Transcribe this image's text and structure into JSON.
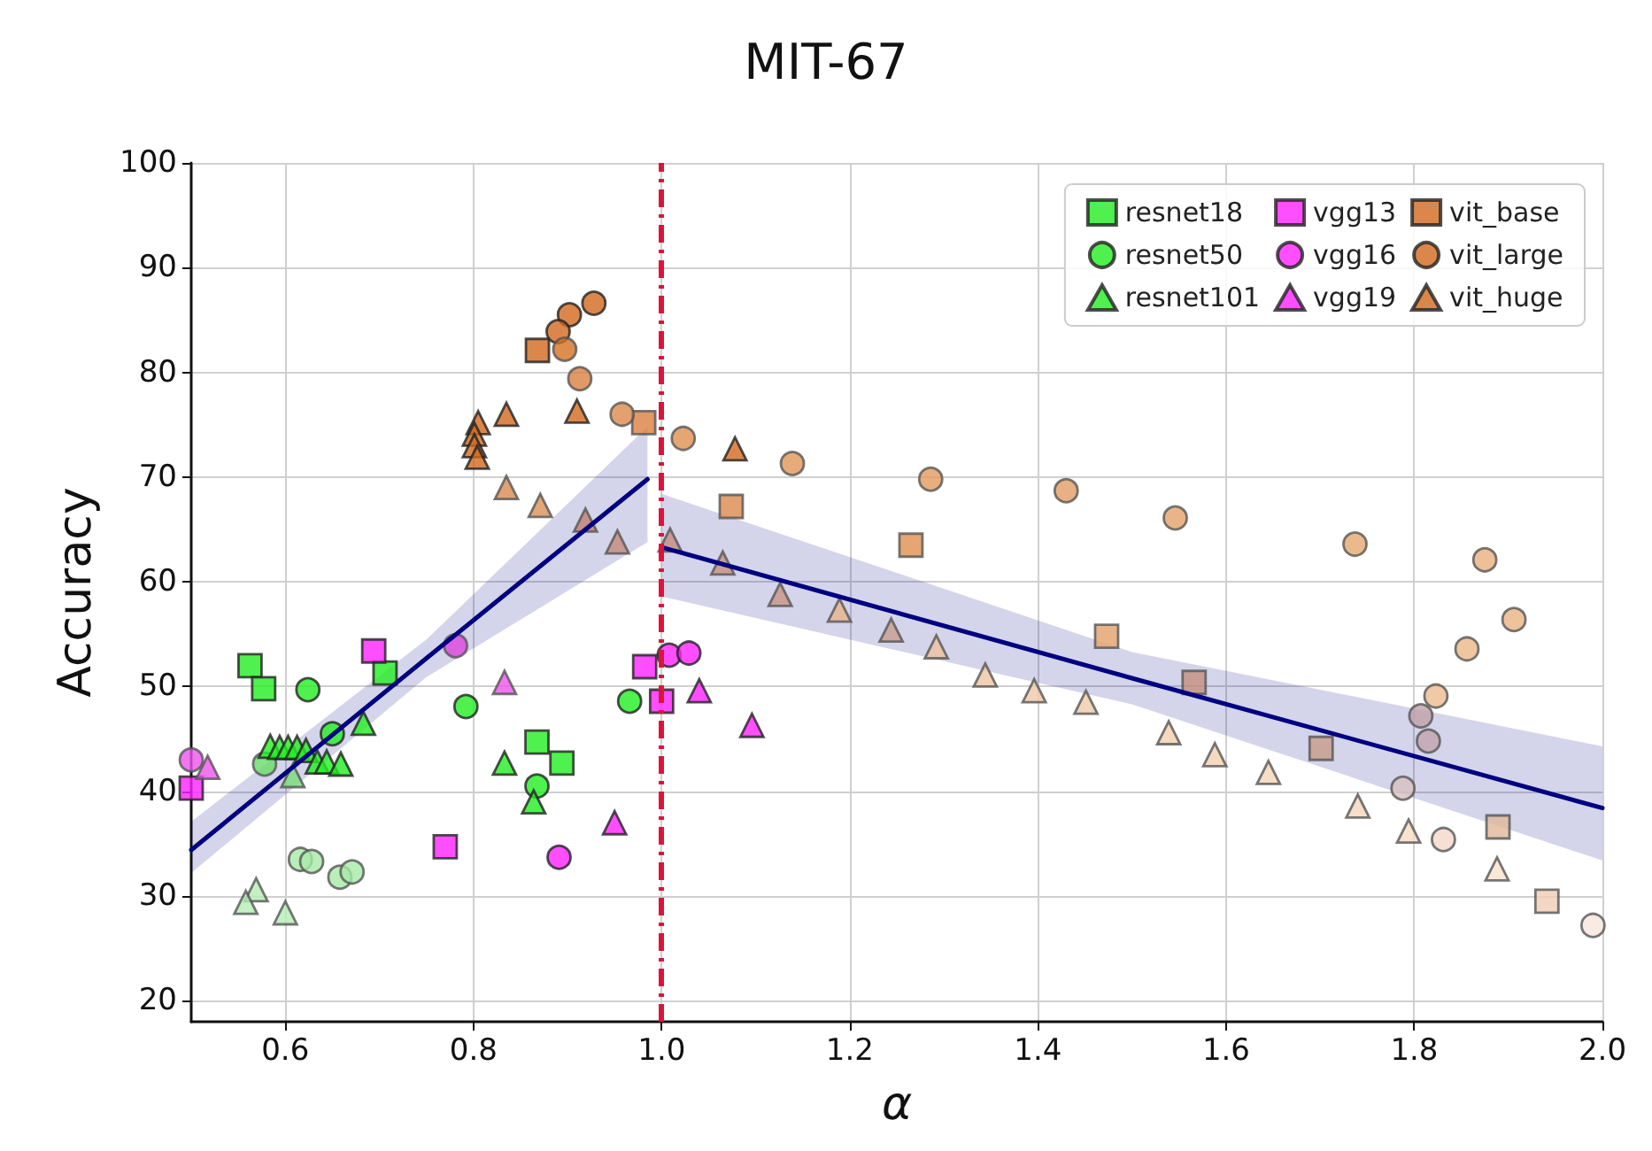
{
  "chart_data": {
    "type": "scatter",
    "title": "MIT-67",
    "xlabel": "α",
    "ylabel": "Accuracy",
    "xlim": [
      0.5,
      2.0
    ],
    "xticks": [
      {
        "value": 0.6,
        "label": "0.6"
      },
      {
        "value": 0.8,
        "label": "0.8"
      },
      {
        "value": 1,
        "label": "1.0"
      },
      {
        "value": 1.2,
        "label": "1.2"
      },
      {
        "value": 1.4,
        "label": "1.4"
      },
      {
        "value": 1.6,
        "label": "1.6"
      },
      {
        "value": 1.8,
        "label": "1.8"
      },
      {
        "value": 2,
        "label": "2.0"
      }
    ],
    "ylim": [
      18,
      100
    ],
    "yticks": [
      20,
      30,
      40,
      50,
      60,
      70,
      80,
      90,
      100
    ],
    "grid": true,
    "legend": "top right",
    "ref_lines": [
      {
        "axis": "x",
        "value": 1.0,
        "color": "#dc143c",
        "line_style": "dashdot"
      }
    ],
    "series": [
      {
        "name": "resnet18",
        "marker": "square",
        "color": "#22ee22",
        "x": [
          0.5625,
          0.577,
          0.706,
          0.8675,
          0.894
        ],
        "values": [
          52.0,
          49.8,
          51.3,
          44.7,
          42.7
        ]
      },
      {
        "name": "resnet50",
        "marker": "circle",
        "color": "#22ee22",
        "x": [
          0.624,
          0.792,
          0.8675,
          0.65,
          0.578,
          0.966,
          0.616,
          0.628,
          0.658,
          0.671
        ],
        "values": [
          49.7,
          48.1,
          40.5,
          45.5,
          42.6,
          48.6,
          33.5,
          33.3,
          31.8,
          32.3
        ],
        "colors": [
          "#22ee22",
          "#22ee22",
          "#22ee22",
          "#22ee22",
          "#66dd66",
          "#22ee22",
          "#a8eaa8",
          "#a8eaa8",
          "#a8eaa8",
          "#a8eaa8"
        ]
      },
      {
        "name": "resnet101",
        "marker": "triangle",
        "color": "#22ee22",
        "x": [
          0.584,
          0.594,
          0.603,
          0.6125,
          0.622,
          0.634,
          0.644,
          0.659,
          0.608,
          0.683,
          0.833,
          0.864,
          0.569,
          0.558,
          0.6
        ],
        "values": [
          44.3,
          44.2,
          44.2,
          44.2,
          43.9,
          42.8,
          42.8,
          42.6,
          41.5,
          46.5,
          42.7,
          39.0,
          30.6,
          29.4,
          28.4
        ],
        "colors": [
          "#22ee22",
          "#22ee22",
          "#22ee22",
          "#22ee22",
          "#22ee22",
          "#22ee22",
          "#22ee22",
          "#22ee22",
          "#77dd77",
          "#22ee22",
          "#22ee22",
          "#22ee22",
          "#b5ecb5",
          "#b5ecb5",
          "#b5ecb5"
        ]
      },
      {
        "name": "vgg13",
        "marker": "square",
        "color": "#ff22ff",
        "x": [
          0.694,
          0.77,
          0.982,
          1.0,
          0.5
        ],
        "values": [
          53.4,
          34.7,
          51.9,
          48.6,
          40.3
        ]
      },
      {
        "name": "vgg16",
        "marker": "circle",
        "color": "#ff22ff",
        "x": [
          0.781,
          0.891,
          0.5,
          1.008,
          1.029
        ],
        "values": [
          53.9,
          33.7,
          43.0,
          53.0,
          53.2
        ],
        "colors": [
          "#dd44dd",
          "#ff22ff",
          "#ee55ee",
          "#ff22ff",
          "#ff22ff"
        ]
      },
      {
        "name": "vgg19",
        "marker": "triangle",
        "color": "#ff22ff",
        "x": [
          0.5175,
          0.833,
          0.95,
          1.04,
          1.096
        ],
        "values": [
          42.3,
          50.4,
          37.0,
          49.6,
          46.3
        ],
        "colors": [
          "#ee55ee",
          "#ee55ee",
          "#ff22ff",
          "#ff22ff",
          "#ff22ff"
        ]
      },
      {
        "name": "vit_base",
        "marker": "square",
        "color": "#d2691e",
        "x": [
          0.868,
          0.981,
          1.074,
          1.265,
          1.473,
          1.566,
          1.701,
          1.889,
          1.941
        ],
        "values": [
          82.1,
          75.2,
          67.2,
          63.5,
          54.8,
          50.4,
          44.1,
          36.6,
          29.5
        ],
        "colors": [
          "#d2691e",
          "#d98040",
          "#dc8a4e",
          "#de9050",
          "#e3a06a",
          "#c4907e",
          "#c89a8a",
          "#e0b89a",
          "#f0cdb4"
        ]
      },
      {
        "name": "vit_large",
        "marker": "circle",
        "color": "#d2691e",
        "x": [
          0.928,
          0.902,
          0.89,
          0.897,
          0.913,
          0.958,
          1.023,
          1.139,
          1.286,
          1.43,
          1.546,
          1.737,
          1.875,
          1.906,
          1.856,
          1.823,
          1.807,
          1.815,
          1.788,
          1.831,
          1.99
        ],
        "values": [
          86.6,
          85.5,
          83.9,
          82.2,
          79.4,
          76.0,
          73.7,
          71.3,
          69.8,
          68.7,
          66.1,
          63.6,
          62.1,
          56.4,
          53.6,
          49.1,
          47.2,
          44.8,
          40.3,
          35.4,
          27.2
        ],
        "colors": [
          "#d2691e",
          "#d2691e",
          "#d2691e",
          "#d4711f",
          "#da8040",
          "#dc8a4e",
          "#de9050",
          "#e09658",
          "#e29a5e",
          "#e39e64",
          "#e4a26a",
          "#e6a872",
          "#e8b07e",
          "#eab482",
          "#ebb888",
          "#ecbc90",
          "#c0a0a8",
          "#c0a4ac",
          "#d8c0c0",
          "#f2d8c8",
          "#f6e6dc"
        ]
      },
      {
        "name": "vit_huge",
        "marker": "triangle",
        "color": "#d2691e",
        "x": [
          0.805,
          0.801,
          0.801,
          0.804,
          0.835,
          0.91,
          1.078,
          0.835,
          0.871,
          0.919,
          0.953,
          1.009,
          1.065,
          1.126,
          1.189,
          1.244,
          1.292,
          1.344,
          1.396,
          1.451,
          1.539,
          1.588,
          1.645,
          1.74,
          1.794,
          1.888
        ],
        "values": [
          75.2,
          74.1,
          73.0,
          71.9,
          76.0,
          76.3,
          72.7,
          69.0,
          67.3,
          65.9,
          63.8,
          64.0,
          61.8,
          58.8,
          57.3,
          55.4,
          53.8,
          51.1,
          49.6,
          48.5,
          45.6,
          43.5,
          41.8,
          38.6,
          36.2,
          32.6
        ],
        "colors": [
          "#d2691e",
          "#d2691e",
          "#d2691e",
          "#d2691e",
          "#d2691e",
          "#d2691e",
          "#d2691e",
          "#da8a50",
          "#dc9058",
          "#c08070",
          "#c48a7a",
          "#c48c7e",
          "#c89080",
          "#c89484",
          "#e6b48a",
          "#c89c8e",
          "#ecc09c",
          "#eec4a0",
          "#f0c8a8",
          "#f0caaa",
          "#f2ceae",
          "#f2d0b2",
          "#f4d4b8",
          "#f4d6bc",
          "#f6dcc4",
          "#f8e2cc"
        ]
      },
      {
        "type": "line",
        "marker": "none",
        "color": "#000080",
        "x": [
          0.5,
          0.75,
          0.985
        ],
        "values": [
          34.4,
          52.7,
          69.8
        ],
        "lower": [
          32.2,
          50.9,
          63.8
        ],
        "upper": [
          37.1,
          54.5,
          74.8
        ]
      },
      {
        "type": "line",
        "marker": "none",
        "color": "#000080",
        "x": [
          1.0,
          1.5,
          2.0
        ],
        "values": [
          63.3,
          50.8,
          38.4
        ],
        "lower": [
          58.6,
          48.3,
          33.4
        ],
        "upper": [
          68.4,
          53.3,
          44.3
        ]
      }
    ]
  }
}
